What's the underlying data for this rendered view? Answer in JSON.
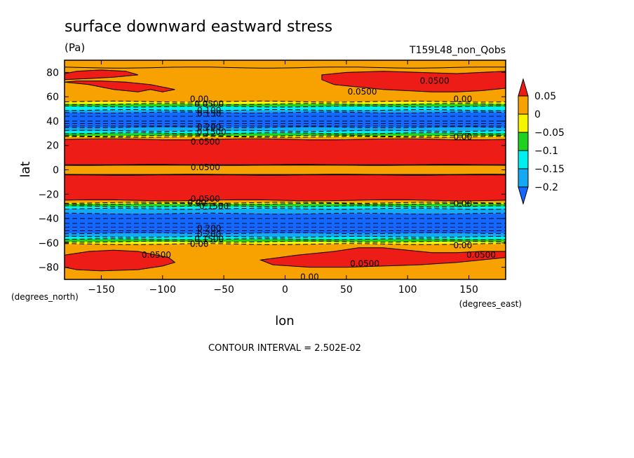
{
  "page": {
    "title": "surface downward eastward stress",
    "units": "(Pa)",
    "run_label": "T159L48_non_Qobs",
    "x_axis_name": "lon",
    "y_axis_name": "lat",
    "x_units": "(degrees_east)",
    "y_units": "(degrees_north)",
    "footer": "CONTOUR INTERVAL = 2.502E-02"
  },
  "colors": {
    "red": "#ee1c16",
    "orange": "#f7a200",
    "yellow": "#f6f500",
    "green": "#1fd21f",
    "cyan": "#00f0f0",
    "lightblue": "#14a9f5",
    "blue": "#1467ff"
  },
  "chart_data": {
    "type": "heatmap",
    "title": "surface downward eastward stress",
    "units": "Pa",
    "xlabel": "lon",
    "ylabel": "lat",
    "xlim": [
      -180,
      180
    ],
    "ylim": [
      -90,
      90
    ],
    "x_ticks": [
      -150,
      -100,
      -50,
      0,
      50,
      100,
      150
    ],
    "y_ticks": [
      -80,
      -60,
      -40,
      -20,
      0,
      20,
      40,
      60,
      80
    ],
    "contour_interval": 0.02502,
    "colorbar": {
      "labels": [
        "0.05",
        "0",
        "-0.05",
        "-0.1",
        "-0.15",
        "-0.2"
      ],
      "levels": [
        {
          "from": 0.05,
          "to": null,
          "color": "#ee1c16"
        },
        {
          "from": 0.0,
          "to": 0.05,
          "color": "#f7a200"
        },
        {
          "from": -0.025,
          "to": 0.0,
          "color": "#f6f500"
        },
        {
          "from": -0.075,
          "to": -0.05,
          "color": "#1fd21f"
        },
        {
          "from": -0.125,
          "to": -0.1,
          "color": "#00f0f0"
        },
        {
          "from": -0.175,
          "to": -0.15,
          "color": "#14a9f5"
        },
        {
          "from": null,
          "to": -0.2,
          "color": "#1467ff"
        }
      ]
    },
    "bands": [
      {
        "lat_from": 90,
        "lat_to": 84,
        "color": "#f7a200"
      },
      {
        "lat_from": 84,
        "lat_to": 56,
        "color": "#f7a200"
      },
      {
        "lat_from": 56,
        "lat_to": 54,
        "color": "#f6f500"
      },
      {
        "lat_from": 54,
        "lat_to": 52,
        "color": "#1fd21f"
      },
      {
        "lat_from": 52,
        "lat_to": 49,
        "color": "#00f0f0"
      },
      {
        "lat_from": 49,
        "lat_to": 47,
        "color": "#14a9f5"
      },
      {
        "lat_from": 47,
        "lat_to": 35,
        "color": "#1467ff"
      },
      {
        "lat_from": 35,
        "lat_to": 32,
        "color": "#14a9f5"
      },
      {
        "lat_from": 32,
        "lat_to": 30,
        "color": "#00f0f0"
      },
      {
        "lat_from": 30,
        "lat_to": 28,
        "color": "#1fd21f"
      },
      {
        "lat_from": 28,
        "lat_to": 27,
        "color": "#f6f500"
      },
      {
        "lat_from": 27,
        "lat_to": 25,
        "color": "#f7a200"
      },
      {
        "lat_from": 25,
        "lat_to": 4,
        "color": "#ee1c16"
      },
      {
        "lat_from": 4,
        "lat_to": -4,
        "color": "#f7a200"
      },
      {
        "lat_from": -4,
        "lat_to": -25,
        "color": "#ee1c16"
      },
      {
        "lat_from": -25,
        "lat_to": -27,
        "color": "#f7a200"
      },
      {
        "lat_from": -27,
        "lat_to": -28,
        "color": "#f6f500"
      },
      {
        "lat_from": -28,
        "lat_to": -30,
        "color": "#1fd21f"
      },
      {
        "lat_from": -30,
        "lat_to": -32,
        "color": "#00f0f0"
      },
      {
        "lat_from": -32,
        "lat_to": -36,
        "color": "#14a9f5"
      },
      {
        "lat_from": -36,
        "lat_to": -52,
        "color": "#1467ff"
      },
      {
        "lat_from": -52,
        "lat_to": -55,
        "color": "#14a9f5"
      },
      {
        "lat_from": -55,
        "lat_to": -57,
        "color": "#00f0f0"
      },
      {
        "lat_from": -57,
        "lat_to": -59,
        "color": "#1fd21f"
      },
      {
        "lat_from": -59,
        "lat_to": -61,
        "color": "#f6f500"
      },
      {
        "lat_from": -61,
        "lat_to": -90,
        "color": "#f7a200"
      }
    ],
    "blobs": [
      {
        "color": "#ee1c16",
        "points": [
          [
            -180,
            79
          ],
          [
            -170,
            81
          ],
          [
            -150,
            82
          ],
          [
            -130,
            81
          ],
          [
            -120,
            78
          ],
          [
            -140,
            76
          ],
          [
            -160,
            75
          ],
          [
            -180,
            74
          ]
        ]
      },
      {
        "color": "#ee1c16",
        "points": [
          [
            -180,
            72
          ],
          [
            -160,
            70
          ],
          [
            -140,
            66
          ],
          [
            -120,
            64
          ],
          [
            -110,
            66
          ],
          [
            -100,
            64
          ],
          [
            -90,
            66
          ],
          [
            -110,
            70
          ],
          [
            -130,
            72
          ],
          [
            -150,
            73
          ],
          [
            -170,
            73
          ]
        ]
      },
      {
        "color": "#ee1c16",
        "points": [
          [
            30,
            78
          ],
          [
            50,
            80
          ],
          [
            80,
            81
          ],
          [
            110,
            80
          ],
          [
            140,
            79
          ],
          [
            160,
            80
          ],
          [
            180,
            81
          ],
          [
            180,
            67
          ],
          [
            160,
            65
          ],
          [
            140,
            64
          ],
          [
            120,
            64
          ],
          [
            100,
            65
          ],
          [
            80,
            66
          ],
          [
            60,
            68
          ],
          [
            40,
            70
          ],
          [
            30,
            74
          ]
        ]
      },
      {
        "color": "#ee1c16",
        "points": [
          [
            -180,
            -70
          ],
          [
            -160,
            -67
          ],
          [
            -140,
            -66
          ],
          [
            -120,
            -67
          ],
          [
            -95,
            -72
          ],
          [
            -90,
            -76
          ],
          [
            -100,
            -79
          ],
          [
            -120,
            -82
          ],
          [
            -150,
            -83
          ],
          [
            -170,
            -82
          ],
          [
            -180,
            -80
          ]
        ]
      },
      {
        "color": "#ee1c16",
        "points": [
          [
            -20,
            -74
          ],
          [
            10,
            -70
          ],
          [
            40,
            -67
          ],
          [
            60,
            -64
          ],
          [
            80,
            -64
          ],
          [
            100,
            -66
          ],
          [
            120,
            -68
          ],
          [
            140,
            -68
          ],
          [
            160,
            -67
          ],
          [
            180,
            -67
          ],
          [
            180,
            -72
          ],
          [
            160,
            -74
          ],
          [
            140,
            -76
          ],
          [
            110,
            -78
          ],
          [
            80,
            -79
          ],
          [
            50,
            -80
          ],
          [
            20,
            -80
          ],
          [
            -10,
            -78
          ]
        ]
      }
    ],
    "contour_labels": [
      {
        "text": "0.0500",
        "lon": 122,
        "lat": 73
      },
      {
        "text": "0.0500",
        "lon": 63,
        "lat": 64
      },
      {
        "text": "0.00",
        "lon": -70,
        "lat": 58
      },
      {
        "text": "0.0500",
        "lon": -62,
        "lat": 54
      },
      {
        "text": "0.100",
        "lon": -62,
        "lat": 49
      },
      {
        "text": "0.150",
        "lon": -62,
        "lat": 46
      },
      {
        "text": "0.00",
        "lon": 145,
        "lat": 58
      },
      {
        "text": "0.200",
        "lon": -62,
        "lat": 35
      },
      {
        "text": "0.1500",
        "lon": -60,
        "lat": 31
      },
      {
        "text": "0.00",
        "lon": 145,
        "lat": 27
      },
      {
        "text": "0.0500",
        "lon": -65,
        "lat": 23
      },
      {
        "text": "0.0500",
        "lon": -65,
        "lat": 2
      },
      {
        "text": "0.0500",
        "lon": -65,
        "lat": -24
      },
      {
        "text": "0.00",
        "lon": -72,
        "lat": -27
      },
      {
        "text": "0.1500",
        "lon": -58,
        "lat": -30
      },
      {
        "text": "0.00",
        "lon": 145,
        "lat": -28
      },
      {
        "text": "0.200",
        "lon": -62,
        "lat": -48
      },
      {
        "text": "0.200",
        "lon": -62,
        "lat": -53
      },
      {
        "text": "0.1500",
        "lon": -62,
        "lat": -57
      },
      {
        "text": "0.00",
        "lon": -70,
        "lat": -61
      },
      {
        "text": "0.00",
        "lon": 145,
        "lat": -62
      },
      {
        "text": "0.0500",
        "lon": -105,
        "lat": -70
      },
      {
        "text": "0.0500",
        "lon": 160,
        "lat": -70
      },
      {
        "text": "0.0500",
        "lon": 65,
        "lat": -77
      },
      {
        "text": "0.00",
        "lon": 20,
        "lat": -88
      }
    ]
  }
}
